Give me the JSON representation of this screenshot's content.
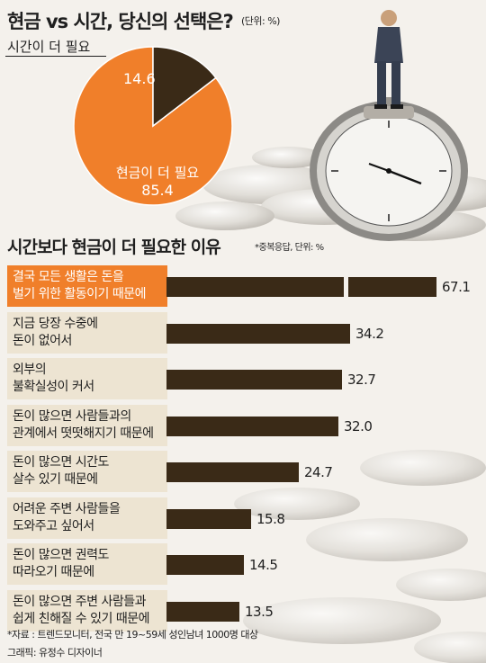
{
  "header": {
    "title": "현금 vs 시간, 당신의 선택은?",
    "unit": "(단위: %)"
  },
  "pie": {
    "legend_time": "시간이 더 필요",
    "time_value": "14.6",
    "cash_label": "현금이 더 필요",
    "cash_value": "85.4",
    "colors": {
      "cash": "#f07f2a",
      "time": "#3a2a17"
    }
  },
  "section2": {
    "title": "시간보다 현금이 더 필요한 이유",
    "unit": "*중복응답, 단위: %"
  },
  "chart_data": [
    {
      "type": "pie",
      "title": "현금 vs 시간, 당신의 선택은?",
      "categories": [
        "현금이 더 필요",
        "시간이 더 필요"
      ],
      "values": [
        85.4,
        14.6
      ]
    },
    {
      "type": "bar",
      "orientation": "horizontal",
      "title": "시간보다 현금이 더 필요한 이유",
      "categories": [
        "결국 모든 생활은 돈을 벌기 위한 활동이기 때문에",
        "지금 당장 수중에 돈이 없어서",
        "외부의 불확실성이 커서",
        "돈이 많으면 사람들과의 관계에서 떳떳해지기 때문에",
        "돈이 많으면 시간도 살수 있기 때문에",
        "어려운 주변 사람들을 도와주고 싶어서",
        "돈이 많으면 권력도 따라오기 때문에",
        "돈이 많으면 주변 사람들과 쉽게 친해질 수 있기 때문에"
      ],
      "values": [
        67.1,
        34.2,
        32.7,
        32.0,
        24.7,
        15.8,
        14.5,
        13.5
      ]
    }
  ],
  "bars": [
    {
      "line1": "결국 모든 생활은 돈을",
      "line2": "벌기 위한 활동이기 때문에",
      "value": 67.1,
      "label": "67.1",
      "highlight": true,
      "broken": true
    },
    {
      "line1": "지금 당장 수중에",
      "line2": "돈이 없어서",
      "value": 34.2,
      "label": "34.2"
    },
    {
      "line1": "외부의",
      "line2": "불확실성이 커서",
      "value": 32.7,
      "label": "32.7"
    },
    {
      "line1": "돈이 많으면 사람들과의",
      "line2": "관계에서 떳떳해지기 때문에",
      "value": 32.0,
      "label": "32.0"
    },
    {
      "line1": "돈이 많으면 시간도",
      "line2": "살수 있기 때문에",
      "value": 24.7,
      "label": "24.7"
    },
    {
      "line1": "어려운 주변 사람들을",
      "line2": "도와주고 싶어서",
      "value": 15.8,
      "label": "15.8"
    },
    {
      "line1": "돈이 많으면 권력도",
      "line2": "따라오기 때문에",
      "value": 14.5,
      "label": "14.5"
    },
    {
      "line1": "돈이 많으면 주변 사람들과",
      "line2": "쉽게 친해질 수 있기 때문에",
      "value": 13.5,
      "label": "13.5"
    }
  ],
  "footer": {
    "source": "*자료 : 트렌드모니터, 전국 만 19~59세 성인남녀 1000명 대상",
    "credit": "그래픽: 유정수 디자이너"
  }
}
